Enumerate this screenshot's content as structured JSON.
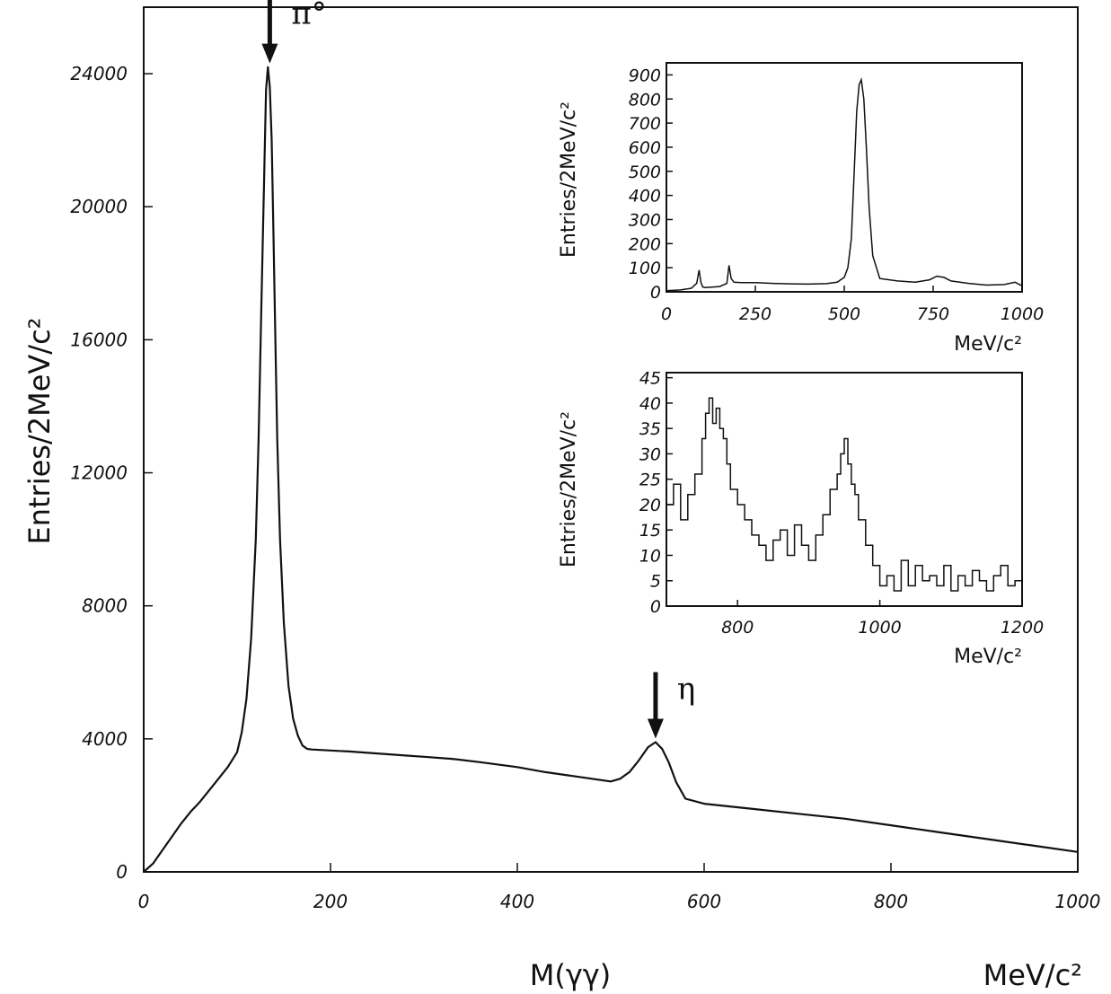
{
  "chart_data": [
    {
      "type": "line",
      "ylabel": "Entries/2MeV/c²",
      "xlabel": "M(γγ)",
      "xunit": "MeV/c²",
      "xlim": [
        0,
        1000
      ],
      "ylim": [
        0,
        26000
      ],
      "xticks": [
        "0",
        "200",
        "400",
        "600",
        "800",
        "1000"
      ],
      "yticks": [
        "0",
        "4000",
        "8000",
        "12000",
        "16000",
        "20000",
        "24000"
      ],
      "annotations": [
        {
          "label": "π°",
          "x": 135,
          "y": 24200
        },
        {
          "label": "η",
          "x": 548,
          "y": 3900
        }
      ],
      "series": [
        {
          "x": [
            0,
            10,
            20,
            30,
            40,
            50,
            60,
            70,
            80,
            90,
            100,
            105,
            110,
            115,
            120,
            123,
            126,
            129,
            131,
            133,
            135,
            137,
            139,
            141,
            143,
            146,
            150,
            155,
            160,
            165,
            170,
            175,
            180,
            200,
            220,
            250,
            280,
            300,
            330,
            360,
            400,
            430,
            460,
            480,
            500,
            510,
            520,
            530,
            540,
            548,
            555,
            562,
            570,
            580,
            600,
            650,
            700,
            750,
            800,
            850,
            900,
            950,
            1000
          ],
          "values": [
            0,
            250,
            650,
            1050,
            1450,
            1800,
            2100,
            2450,
            2800,
            3150,
            3600,
            4200,
            5200,
            7000,
            10000,
            13000,
            17000,
            21000,
            23500,
            24200,
            23600,
            22000,
            19000,
            16000,
            13000,
            10000,
            7500,
            5600,
            4600,
            4100,
            3800,
            3700,
            3680,
            3650,
            3620,
            3560,
            3500,
            3460,
            3400,
            3300,
            3150,
            3000,
            2880,
            2800,
            2720,
            2800,
            3000,
            3350,
            3750,
            3900,
            3700,
            3300,
            2700,
            2200,
            2050,
            1900,
            1750,
            1600,
            1400,
            1200,
            1000,
            800,
            600
          ]
        }
      ]
    },
    {
      "type": "line",
      "ylabel": "Entries/2MeV/c²",
      "xunit": "MeV/c²",
      "xlim": [
        0,
        1000
      ],
      "ylim": [
        0,
        950
      ],
      "xticks": [
        "0",
        "250",
        "500",
        "750",
        "1000"
      ],
      "yticks": [
        "0",
        "100",
        "200",
        "300",
        "400",
        "500",
        "600",
        "700",
        "800",
        "900"
      ],
      "series": [
        {
          "x": [
            0,
            40,
            70,
            85,
            92,
            97,
            102,
            110,
            150,
            170,
            176,
            182,
            190,
            210,
            250,
            300,
            350,
            400,
            450,
            480,
            500,
            510,
            520,
            528,
            535,
            542,
            548,
            555,
            562,
            570,
            580,
            600,
            650,
            700,
            740,
            760,
            780,
            800,
            850,
            900,
            950,
            980,
            1000
          ],
          "values": [
            5,
            8,
            15,
            35,
            90,
            40,
            20,
            18,
            22,
            35,
            110,
            55,
            40,
            38,
            38,
            35,
            33,
            32,
            34,
            40,
            60,
            100,
            220,
            500,
            750,
            860,
            880,
            800,
            600,
            350,
            150,
            55,
            45,
            40,
            50,
            65,
            60,
            45,
            35,
            28,
            30,
            40,
            25
          ]
        }
      ]
    },
    {
      "type": "line",
      "ylabel": "Entries/2MeV/c²",
      "xunit": "MeV/c²",
      "xlim": [
        700,
        1200
      ],
      "ylim": [
        0,
        46
      ],
      "xticks": [
        "800",
        "1000",
        "1200"
      ],
      "yticks": [
        "0",
        "5",
        "10",
        "15",
        "20",
        "25",
        "30",
        "35",
        "40",
        "45"
      ],
      "series": [
        {
          "x": [
            700,
            710,
            720,
            730,
            740,
            750,
            755,
            760,
            765,
            770,
            775,
            780,
            785,
            790,
            800,
            810,
            820,
            830,
            840,
            850,
            860,
            870,
            880,
            890,
            900,
            910,
            920,
            930,
            940,
            945,
            950,
            955,
            960,
            965,
            970,
            980,
            990,
            1000,
            1010,
            1020,
            1030,
            1040,
            1050,
            1060,
            1070,
            1080,
            1090,
            1100,
            1110,
            1120,
            1130,
            1140,
            1150,
            1160,
            1170,
            1180,
            1190,
            1200
          ],
          "values": [
            20,
            24,
            17,
            22,
            26,
            33,
            38,
            41,
            36,
            39,
            35,
            33,
            28,
            23,
            20,
            17,
            14,
            12,
            9,
            13,
            15,
            10,
            16,
            12,
            9,
            14,
            18,
            23,
            26,
            30,
            33,
            28,
            24,
            22,
            17,
            12,
            8,
            4,
            6,
            3,
            9,
            4,
            8,
            5,
            6,
            4,
            8,
            3,
            6,
            4,
            7,
            5,
            3,
            6,
            8,
            4,
            5,
            3
          ]
        }
      ]
    }
  ]
}
